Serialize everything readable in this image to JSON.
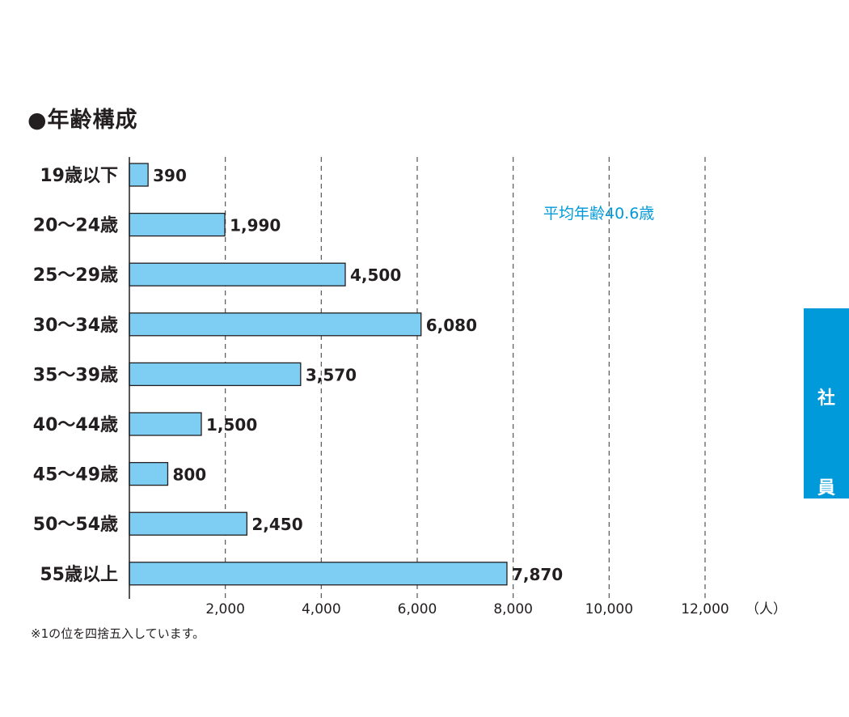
{
  "chart_data": {
    "type": "bar",
    "orientation": "horizontal",
    "title": "●年齢構成",
    "categories": [
      "19歳以下",
      "20〜24歳",
      "25〜29歳",
      "30〜34歳",
      "35〜39歳",
      "40〜44歳",
      "45〜49歳",
      "50〜54歳",
      "55歳以上"
    ],
    "values": [
      390,
      1990,
      4500,
      6080,
      3570,
      1500,
      800,
      2450,
      7870
    ],
    "value_labels": [
      "390",
      "1,990",
      "4,500",
      "6,080",
      "3,570",
      "1,500",
      "800",
      "2,450",
      "7,870"
    ],
    "xlim": [
      0,
      12000
    ],
    "x_ticks": [
      2000,
      4000,
      6000,
      8000,
      10000,
      12000
    ],
    "x_tick_labels": [
      "2,000",
      "4,000",
      "6,000",
      "8,000",
      "10,000",
      "12,000"
    ],
    "x_unit": "（人）",
    "grid": "vertical-dashed",
    "annotation": "平均年齢40.6歳",
    "bar_color": "#7ecef4",
    "bar_stroke": "#231f20",
    "accent_color": "#0099d9"
  },
  "footnote": "※1の位を四捨五入しています。",
  "side_tab": {
    "chars": [
      "社",
      "員"
    ]
  }
}
